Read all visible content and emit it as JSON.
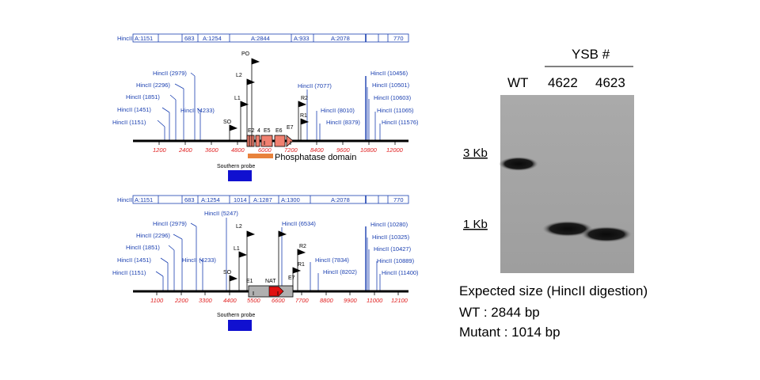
{
  "maps": [
    {
      "id": "wt",
      "bar_start": 3.2,
      "bar_labels": [
        "HincII",
        "A:1151",
        "683",
        "A:1254",
        "A:2844",
        "A:933",
        "A:2078",
        "770"
      ],
      "bar_ticks_kb": [
        0.4,
        1.55,
        2.23,
        3.5,
        6.34,
        7.27,
        9.35,
        10.3,
        10.7,
        11.1
      ],
      "axis_min": 0,
      "axis_max": 12600,
      "tick_labels": [
        "1200",
        "2400",
        "3600",
        "4800",
        "6000",
        "7200",
        "8400",
        "9600",
        "10800",
        "12000"
      ],
      "sites_left": [
        "HincII (1151)",
        "HincII (1451)",
        "HincII (1851)",
        "HincII (2296)",
        "HincII (2979)"
      ],
      "sites_left_mid": [
        "HincII (4233)"
      ],
      "sites_right_mid": [
        "HincII (7077)",
        "HincII (8010)",
        "HincII (8379)"
      ],
      "sites_right": [
        "HincII (10456)",
        "HincII (10501)",
        "HincII (10603)",
        "HincII (11065)",
        "HincII (11576)"
      ],
      "primers": [
        "PO",
        "L2",
        "L1",
        "SO",
        "R2",
        "R1"
      ],
      "exons": [
        "E2",
        "4",
        "E5",
        "E6",
        "E7"
      ],
      "domain_label": "Phosphatase domain",
      "probe_label": "Southern probe"
    },
    {
      "id": "mutant",
      "bar_labels": [
        "HincII",
        "A:1151",
        "683",
        "A:1254",
        "1014",
        "A:1287",
        "A:1300",
        "A:2078",
        "770"
      ],
      "axis_min": 0,
      "axis_max": 12600,
      "tick_labels": [
        "1100",
        "2200",
        "3300",
        "4400",
        "5500",
        "6600",
        "7700",
        "8800",
        "9900",
        "11000",
        "12100"
      ],
      "sites_left": [
        "HincII (1151)",
        "HincII (1451)",
        "HincII (1851)",
        "HincII (2296)",
        "HincII (2979)"
      ],
      "sites_left_mid": [
        "HincII (4233)",
        "HincII (5247)"
      ],
      "sites_right_mid": [
        "HincII (6534)",
        "HincII (7834)",
        "HincII (8202)"
      ],
      "sites_right": [
        "HincII (10280)",
        "HincII (10325)",
        "HincII (10427)",
        "HincII (10889)",
        "HincII (11400)"
      ],
      "primers": [
        "L2",
        "L1",
        "SO",
        "R2",
        "R1"
      ],
      "exons": [
        "E1",
        "NAT",
        "E7"
      ],
      "probe_label": "Southern probe"
    }
  ],
  "blot": {
    "group_label": "YSB #",
    "lanes": [
      "WT",
      "4622",
      "4623"
    ],
    "markers": [
      "3 Kb",
      "1 Kb"
    ]
  },
  "expected": {
    "title": "Expected size (HincII digestion)",
    "wt": "WT : 2844 bp",
    "mutant": "Mutant : 1014 bp"
  },
  "colors": {
    "map_blue": "#1a3fb0",
    "tick_red": "#e02020",
    "exon_salmon": "#f08070",
    "domain_orange": "#e8823c",
    "probe_blue": "#1010d0",
    "nat_red": "#e01010",
    "nat_gray": "#b0b0b0"
  }
}
